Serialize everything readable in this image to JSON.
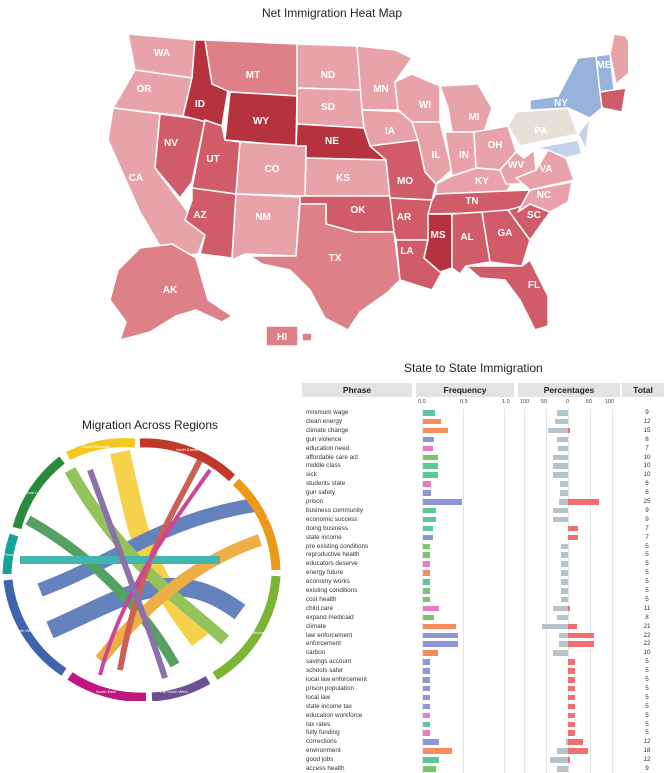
{
  "map": {
    "title": "Net Immigration Heat Map",
    "colors": {
      "light": "#e8a3a8",
      "mid": "#dd8088",
      "strong": "#cf5c68",
      "dark": "#b7323f",
      "neutral": "#e4e1d7",
      "blue": "#97b3db",
      "lightblue": "#c5d3ea"
    },
    "states": {
      "WA": "WA",
      "OR": "OR",
      "CA": "CA",
      "NV": "NV",
      "ID": "ID",
      "MT": "MT",
      "WY": "WY",
      "UT": "UT",
      "AZ": "AZ",
      "CO": "CO",
      "NM": "NM",
      "ND": "ND",
      "SD": "SD",
      "NE": "NE",
      "KS": "KS",
      "OK": "OK",
      "TX": "TX",
      "MN": "MN",
      "IA": "IA",
      "MO": "MO",
      "AR": "AR",
      "LA": "LA",
      "WI": "WI",
      "IL": "IL",
      "MS": "MS",
      "MI": "MI",
      "IN": "IN",
      "KY": "KY",
      "TN": "TN",
      "AL": "AL",
      "OH": "OH",
      "WV": "WV",
      "VA": "VA",
      "NC": "NC",
      "SC": "SC",
      "GA": "GA",
      "FL": "FL",
      "PA": "PA",
      "NY": "NY",
      "ME": "ME",
      "AK": "AK",
      "HI": "HI"
    }
  },
  "chord": {
    "title": "Migration Across Regions",
    "colors": {
      "yellow": "#f5c820",
      "red": "#c0392b",
      "orange": "#eb9a18",
      "green": "#7ab534",
      "purple": "#6d4f93",
      "magenta": "#c0177f",
      "blue": "#3f64ad",
      "teal": "#14a39a",
      "dkgreen": "#2a8a3c"
    },
    "labels": {
      "yellow": "Rocky Mountain",
      "red": "North Eastern",
      "orange": "Pacific",
      "green": "Mideast",
      "purple": "Far South West",
      "magenta": "South East",
      "blue": "South West",
      "teal": "Plains",
      "dkgreen": "Great Lakes"
    }
  },
  "table": {
    "title": "State to State Immigration",
    "headers": {
      "phrase": "Phrase",
      "frequency": "Frequency",
      "percentages": "Percentages",
      "total": "Total"
    },
    "freq_ticks": [
      "0.0",
      "0.5",
      "1.0"
    ],
    "pct_ticks": [
      "100",
      "50",
      "0",
      "50",
      "100"
    ],
    "colors": {
      "neg": "#b5c4cc",
      "pos": "#f07070"
    },
    "rows": [
      {
        "phrase": "minimum wage",
        "freq": 0.15,
        "color": "#5cc89a",
        "neg": 25,
        "pos": 0,
        "total": "9"
      },
      {
        "phrase": "clean energy",
        "freq": 0.22,
        "color": "#f58c5c",
        "neg": 30,
        "pos": 0,
        "total": "12"
      },
      {
        "phrase": "climate change",
        "freq": 0.3,
        "color": "#f58c5c",
        "neg": 45,
        "pos": 5,
        "total": "15"
      },
      {
        "phrase": "gun violence",
        "freq": 0.14,
        "color": "#8e95d8",
        "neg": 25,
        "pos": 0,
        "total": "8"
      },
      {
        "phrase": "education need",
        "freq": 0.12,
        "color": "#e77cc5",
        "neg": 22,
        "pos": 0,
        "total": "7"
      },
      {
        "phrase": "affordable care act",
        "freq": 0.18,
        "color": "#76c66a",
        "neg": 35,
        "pos": 0,
        "total": "10"
      },
      {
        "phrase": "middle class",
        "freq": 0.18,
        "color": "#5cc89a",
        "neg": 35,
        "pos": 0,
        "total": "10"
      },
      {
        "phrase": "sick",
        "freq": 0.18,
        "color": "#5cc89a",
        "neg": 35,
        "pos": 0,
        "total": "10"
      },
      {
        "phrase": "students state",
        "freq": 0.1,
        "color": "#e77cc5",
        "neg": 18,
        "pos": 0,
        "total": "6"
      },
      {
        "phrase": "gun safety",
        "freq": 0.1,
        "color": "#8e95d8",
        "neg": 18,
        "pos": 0,
        "total": "6"
      },
      {
        "phrase": "prison",
        "freq": 0.48,
        "color": "#8e95d8",
        "neg": 20,
        "pos": 70,
        "total": "25"
      },
      {
        "phrase": "business community",
        "freq": 0.16,
        "color": "#5cc89a",
        "neg": 35,
        "pos": 0,
        "total": "9"
      },
      {
        "phrase": "economic success",
        "freq": 0.16,
        "color": "#5cc89a",
        "neg": 35,
        "pos": 0,
        "total": "9"
      },
      {
        "phrase": "doing business",
        "freq": 0.12,
        "color": "#5cc89a",
        "neg": 0,
        "pos": 22,
        "total": "7"
      },
      {
        "phrase": "state income",
        "freq": 0.12,
        "color": "#8e95d8",
        "neg": 0,
        "pos": 22,
        "total": "7"
      },
      {
        "phrase": "pre existing conditions",
        "freq": 0.08,
        "color": "#76c66a",
        "neg": 15,
        "pos": 0,
        "total": "5"
      },
      {
        "phrase": "reproductive health",
        "freq": 0.08,
        "color": "#76c66a",
        "neg": 15,
        "pos": 0,
        "total": "5"
      },
      {
        "phrase": "educators deserve",
        "freq": 0.08,
        "color": "#e77cc5",
        "neg": 15,
        "pos": 0,
        "total": "5"
      },
      {
        "phrase": "energy future",
        "freq": 0.08,
        "color": "#f58c5c",
        "neg": 15,
        "pos": 0,
        "total": "5"
      },
      {
        "phrase": "economy works",
        "freq": 0.08,
        "color": "#5cc89a",
        "neg": 15,
        "pos": 0,
        "total": "5"
      },
      {
        "phrase": "existing conditions",
        "freq": 0.08,
        "color": "#76c66a",
        "neg": 15,
        "pos": 0,
        "total": "5"
      },
      {
        "phrase": "cost health",
        "freq": 0.08,
        "color": "#76c66a",
        "neg": 15,
        "pos": 0,
        "total": "5"
      },
      {
        "phrase": "child care",
        "freq": 0.2,
        "color": "#e77cc5",
        "neg": 35,
        "pos": 5,
        "total": "11"
      },
      {
        "phrase": "expand medicaid",
        "freq": 0.14,
        "color": "#76c66a",
        "neg": 25,
        "pos": 0,
        "total": "8"
      },
      {
        "phrase": "climate",
        "freq": 0.4,
        "color": "#f58c5c",
        "neg": 60,
        "pos": 20,
        "total": "21"
      },
      {
        "phrase": "law enforcement",
        "freq": 0.43,
        "color": "#8e95d8",
        "neg": 20,
        "pos": 60,
        "total": "22"
      },
      {
        "phrase": "enforcement",
        "freq": 0.43,
        "color": "#8e95d8",
        "neg": 20,
        "pos": 60,
        "total": "22"
      },
      {
        "phrase": "carbon",
        "freq": 0.18,
        "color": "#f58c5c",
        "neg": 35,
        "pos": 0,
        "total": "10"
      },
      {
        "phrase": "savings account",
        "freq": 0.08,
        "color": "#8e95d8",
        "neg": 0,
        "pos": 15,
        "total": "5"
      },
      {
        "phrase": "schools safer",
        "freq": 0.08,
        "color": "#8e95d8",
        "neg": 0,
        "pos": 15,
        "total": "5"
      },
      {
        "phrase": "local law enforcement",
        "freq": 0.08,
        "color": "#8e95d8",
        "neg": 0,
        "pos": 15,
        "total": "5"
      },
      {
        "phrase": "prison population",
        "freq": 0.08,
        "color": "#8e95d8",
        "neg": 0,
        "pos": 15,
        "total": "5"
      },
      {
        "phrase": "local law",
        "freq": 0.08,
        "color": "#8e95d8",
        "neg": 0,
        "pos": 15,
        "total": "5"
      },
      {
        "phrase": "state income tax",
        "freq": 0.08,
        "color": "#8e95d8",
        "neg": 0,
        "pos": 15,
        "total": "5"
      },
      {
        "phrase": "education workforce",
        "freq": 0.08,
        "color": "#e77cc5",
        "neg": 0,
        "pos": 15,
        "total": "5"
      },
      {
        "phrase": "tax rates",
        "freq": 0.08,
        "color": "#5cc89a",
        "neg": 0,
        "pos": 15,
        "total": "5"
      },
      {
        "phrase": "fully funding",
        "freq": 0.08,
        "color": "#e77cc5",
        "neg": 0,
        "pos": 15,
        "total": "5"
      },
      {
        "phrase": "corrections",
        "freq": 0.2,
        "color": "#8e95d8",
        "neg": 5,
        "pos": 35,
        "total": "12"
      },
      {
        "phrase": "environment",
        "freq": 0.35,
        "color": "#f58c5c",
        "neg": 25,
        "pos": 45,
        "total": "18"
      },
      {
        "phrase": "good jobs",
        "freq": 0.2,
        "color": "#5cc89a",
        "neg": 40,
        "pos": 5,
        "total": "12"
      },
      {
        "phrase": "access health",
        "freq": 0.16,
        "color": "#76c66a",
        "neg": 25,
        "pos": 0,
        "total": "9"
      }
    ]
  }
}
